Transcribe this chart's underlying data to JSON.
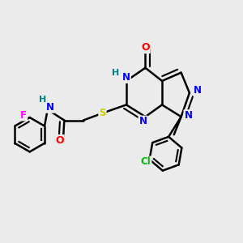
{
  "background_color": "#ebebeb",
  "bond_color": "#000000",
  "bond_width": 1.8,
  "atom_colors": {
    "N": "#0000ff",
    "O": "#ff0000",
    "S": "#cccc00",
    "F": "#ff00ff",
    "Cl": "#00bb00",
    "H": "#008080",
    "C": "#000000"
  },
  "font_size": 8.5,
  "fig_width": 3.0,
  "fig_height": 3.0,
  "xlim": [
    0,
    10
  ],
  "ylim": [
    0,
    10
  ]
}
